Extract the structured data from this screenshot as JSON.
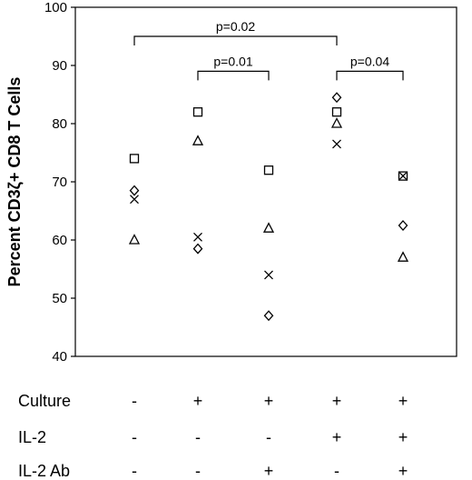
{
  "chart_data": {
    "type": "scatter",
    "ylabel": "Percent CD3ζ+ CD8 T Cells",
    "xlabel": "",
    "title": "",
    "ylim": [
      40,
      100
    ],
    "yticks": [
      40,
      50,
      60,
      70,
      80,
      90,
      100
    ],
    "grid": false,
    "groups": [
      1,
      2,
      3,
      4,
      5
    ],
    "series": [
      {
        "name": "",
        "marker": "square",
        "values": [
          74,
          82,
          72,
          82,
          71
        ]
      },
      {
        "name": "",
        "marker": "triangle",
        "values": [
          60,
          77,
          62,
          80,
          57
        ]
      },
      {
        "name": "",
        "marker": "x",
        "values": [
          67,
          60.5,
          54,
          76.5,
          71
        ]
      },
      {
        "name": "",
        "marker": "diamond",
        "values": [
          68.5,
          58.5,
          47,
          84.5,
          62.5
        ]
      }
    ],
    "annotations": [
      {
        "text": "p=0.02",
        "from_group": 1,
        "to_group": 4,
        "y": 95
      },
      {
        "text": "p=0.01",
        "from_group": 2,
        "to_group": 3,
        "y": 89
      },
      {
        "text": "p=0.04",
        "from_group": 4,
        "to_group": 5,
        "y": 89
      }
    ],
    "conditions": [
      {
        "label": "Culture",
        "signs": [
          "-",
          "+",
          "+",
          "+",
          "+"
        ]
      },
      {
        "label": "IL-2",
        "signs": [
          "-",
          "-",
          "-",
          "+",
          "+"
        ]
      },
      {
        "label": "IL-2 Ab",
        "signs": [
          "-",
          "-",
          "+",
          "-",
          "+"
        ]
      }
    ]
  }
}
